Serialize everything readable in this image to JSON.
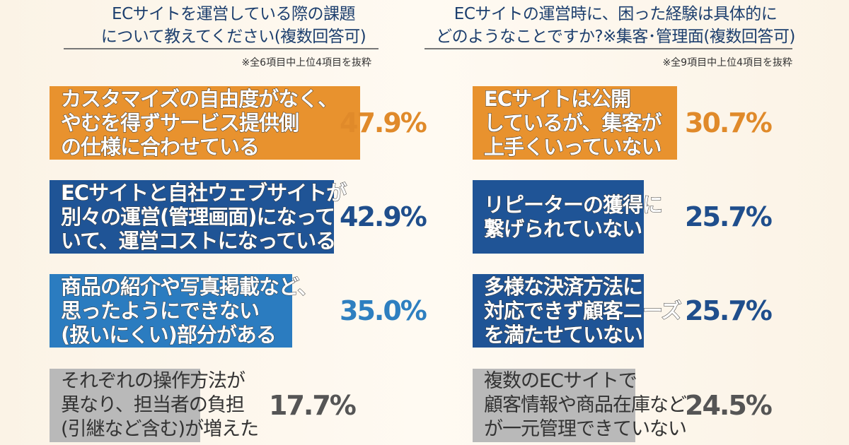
{
  "chart_data": [
    {
      "type": "bar",
      "orientation": "horizontal",
      "title": "ECサイトを運営している際の課題\nについて教えてください(複数回答可)",
      "note": "※全6項目中上位4項目を抜粋",
      "unit": "%",
      "categories": [
        "カスタマイズの自由度がなく、\nやむを得ずサービス提供側\nの仕様に合わせている",
        "ECサイトと自社ウェブサイトが\n別々の運営(管理画面)になって\nいて、運営コストになっている",
        "商品の紹介や写真掲載など、\n思ったようにできない\n(扱いにくい)部分がある",
        "それぞれの操作方法が\n異なり、担当者の負担\n(引継など含む)が増えた"
      ],
      "values": [
        47.9,
        42.9,
        35.0,
        17.7
      ],
      "labels": [
        "47.9%",
        "42.9%",
        "35.0%",
        "17.7%"
      ],
      "colors": [
        "#e8922e",
        "#1f5496",
        "#2b7cc0",
        "#b9b9b9"
      ],
      "text_colors": [
        "#e08a2a",
        "#1f4e8c",
        "#2e7fc0",
        "#555555"
      ]
    },
    {
      "type": "bar",
      "orientation": "horizontal",
      "title": "ECサイトの運営時に、困った経験は具体的に\nどのようなことですか?※集客･管理面(複数回答可)",
      "note": "※全9項目中上位4項目を抜粋",
      "unit": "%",
      "categories": [
        "ECサイトは公開\nしているが、集客が\n上手くいっていない",
        "リピーターの獲得に\n繋げられていない",
        "多様な決済方法に\n対応できず顧客ニーズ\nを満たせていない",
        "複数のECサイトで\n顧客情報や商品在庫など\nが一元管理できていない"
      ],
      "values": [
        30.7,
        25.7,
        25.7,
        24.5
      ],
      "labels": [
        "30.7%",
        "25.7%",
        "25.7%",
        "24.5%"
      ],
      "colors": [
        "#e8922e",
        "#1f5496",
        "#1f5496",
        "#b9b9b9"
      ],
      "text_colors": [
        "#e08a2a",
        "#1f4e8c",
        "#1f4e8c",
        "#555555"
      ]
    }
  ]
}
